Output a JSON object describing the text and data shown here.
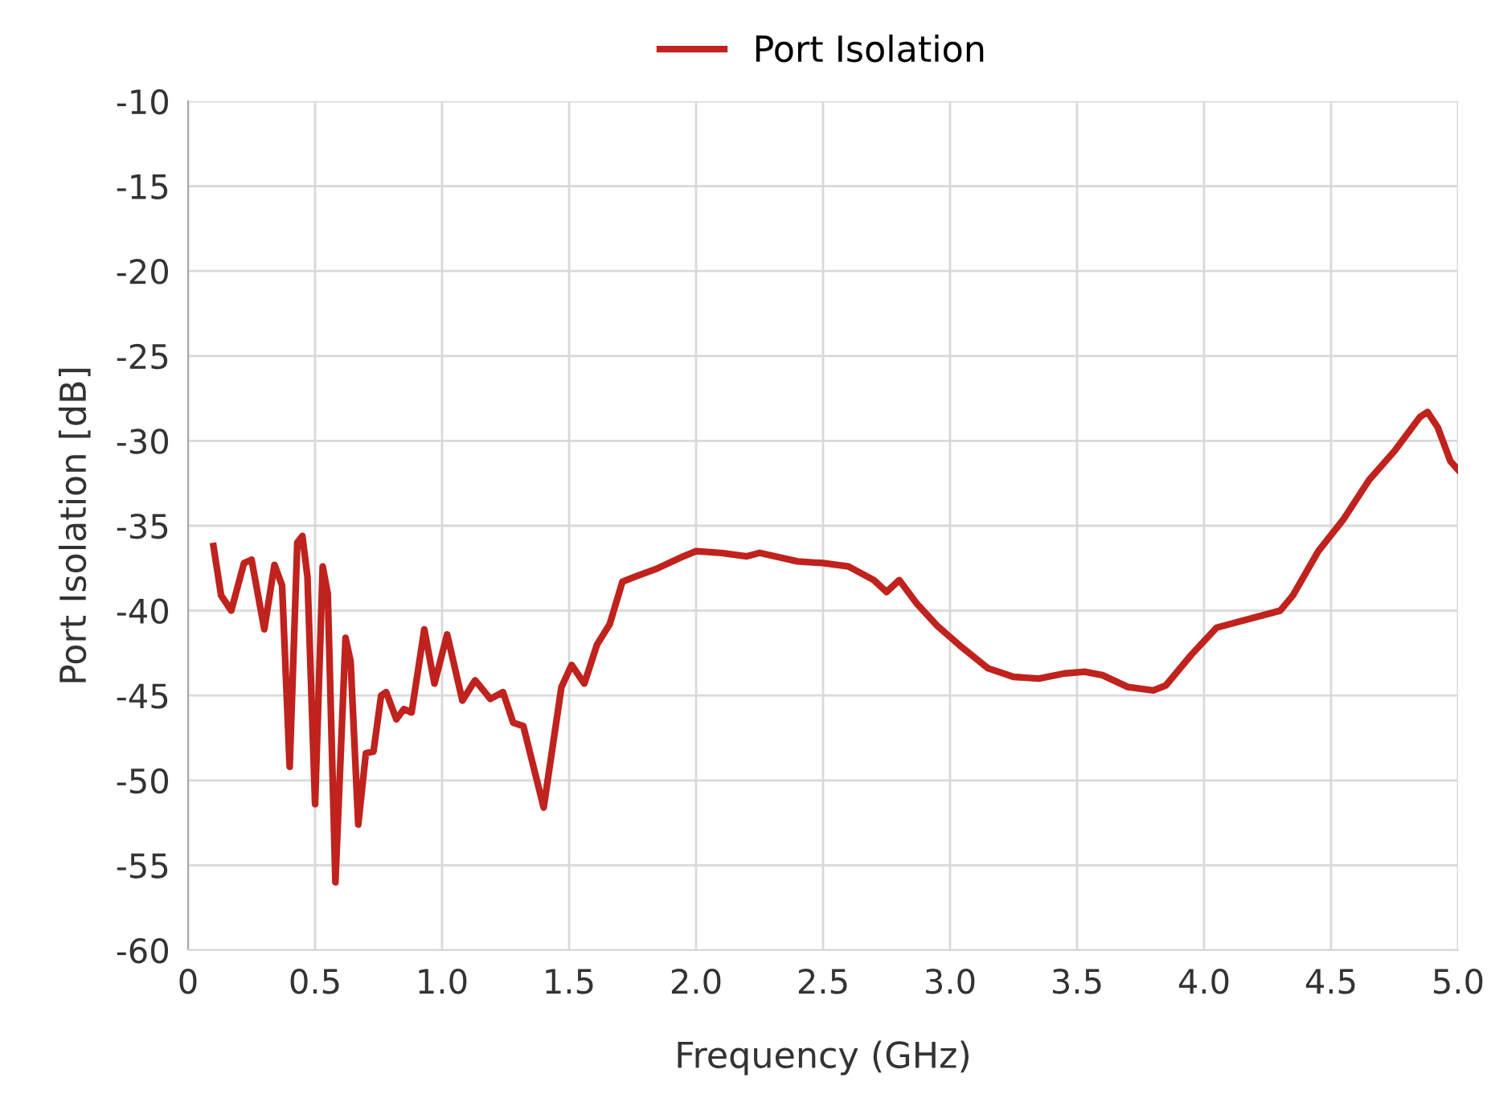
{
  "chart_data": {
    "type": "line",
    "xlabel": "Frequency (GHz)",
    "ylabel": "Port Isolation [dB]",
    "legend": "top",
    "grid": true,
    "line_style": "solid",
    "marker": "none",
    "xlim": [
      0,
      5
    ],
    "ylim": [
      -60,
      -10
    ],
    "xticks": [
      0,
      {
        "value": 0.5,
        "label": "0.5"
      },
      {
        "value": 1,
        "label": "1.0"
      },
      {
        "value": 1.5,
        "label": "1.5"
      },
      {
        "value": 2,
        "label": "2.0"
      },
      {
        "value": 2.5,
        "label": "2.5"
      },
      {
        "value": 3,
        "label": "3.0"
      },
      {
        "value": 3.5,
        "label": "3.5"
      },
      {
        "value": 4,
        "label": "4.0"
      },
      {
        "value": 4.5,
        "label": "4.5"
      },
      {
        "value": 5,
        "label": "5.0"
      }
    ],
    "yticks": [
      -60,
      -55,
      -50,
      -45,
      -40,
      -35,
      -30,
      -25,
      -20,
      -15,
      -10
    ],
    "series": [
      {
        "name": "Port Isolation",
        "color": "#c0221e",
        "x": [
          0.1,
          0.13,
          0.17,
          0.22,
          0.25,
          0.3,
          0.34,
          0.37,
          0.4,
          0.43,
          0.45,
          0.47,
          0.5,
          0.53,
          0.55,
          0.58,
          0.62,
          0.64,
          0.67,
          0.7,
          0.73,
          0.76,
          0.78,
          0.82,
          0.85,
          0.88,
          0.93,
          0.97,
          1.02,
          1.08,
          1.13,
          1.19,
          1.24,
          1.28,
          1.32,
          1.4,
          1.47,
          1.51,
          1.56,
          1.61,
          1.66,
          1.71,
          1.76,
          1.85,
          1.95,
          2.0,
          2.1,
          2.2,
          2.25,
          2.4,
          2.5,
          2.6,
          2.7,
          2.75,
          2.8,
          2.87,
          2.95,
          3.05,
          3.15,
          3.25,
          3.35,
          3.45,
          3.53,
          3.6,
          3.7,
          3.8,
          3.85,
          3.95,
          4.05,
          4.15,
          4.3,
          4.35,
          4.45,
          4.55,
          4.65,
          4.75,
          4.85,
          4.88,
          4.92,
          4.97,
          5.0
        ],
        "values": [
          -36.2,
          -39.1,
          -40.0,
          -37.2,
          -37.0,
          -41.1,
          -37.3,
          -38.5,
          -49.2,
          -36.0,
          -35.6,
          -38,
          -51.4,
          -37.4,
          -39,
          -56.0,
          -41.6,
          -43,
          -52.6,
          -48.4,
          -48.3,
          -45.0,
          -44.8,
          -46.4,
          -45.8,
          -46.0,
          -41.1,
          -44.3,
          -41.4,
          -45.3,
          -44.1,
          -45.2,
          -44.8,
          -46.6,
          -46.8,
          -51.6,
          -44.5,
          -43.2,
          -44.3,
          -42,
          -40.8,
          -38.3,
          -38.0,
          -37.5,
          -36.8,
          -36.5,
          -36.6,
          -36.8,
          -36.6,
          -37.1,
          -37.2,
          -37.4,
          -38.2,
          -38.9,
          -38.2,
          -39.6,
          -40.9,
          -42.2,
          -43.4,
          -43.9,
          -44.0,
          -43.7,
          -43.6,
          -43.8,
          -44.5,
          -44.7,
          -44.4,
          -42.6,
          -41.0,
          -40.6,
          -40.0,
          -39.1,
          -36.5,
          -34.6,
          -32.3,
          -30.6,
          -28.6,
          -28.3,
          -29.2,
          -31.2,
          -31.7
        ]
      }
    ]
  }
}
